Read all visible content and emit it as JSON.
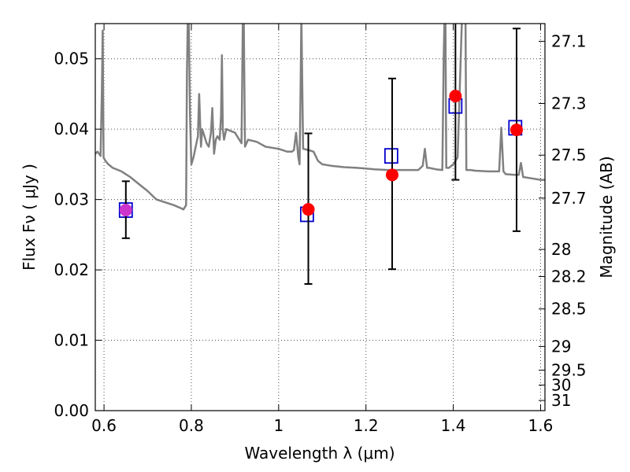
{
  "chart_data": {
    "type": "scatter",
    "xlabel": "Wavelength  λ (μm)",
    "ylabel": "Flux  Fν  ( μJy )",
    "y2label": "Magnitude (AB)",
    "xlim": [
      0.58,
      1.61
    ],
    "ylim": [
      0.0,
      0.055
    ],
    "grid": true,
    "x_ticks": [
      0.6,
      0.8,
      1.0,
      1.2,
      1.4,
      1.6
    ],
    "x_tick_labels": [
      "0.6",
      "0.8",
      "1",
      "1.2",
      "1.4",
      "1.6"
    ],
    "y_ticks": [
      0.0,
      0.01,
      0.02,
      0.03,
      0.04,
      0.05
    ],
    "y_tick_labels": [
      "0.00",
      "0.01",
      "0.02",
      "0.03",
      "0.04",
      "0.05"
    ],
    "mag_ticks": [
      27.1,
      27.3,
      27.5,
      27.7,
      28,
      28.2,
      28.5,
      29,
      29.5,
      30,
      31
    ],
    "mag_tick_labels": [
      "27.1",
      "27.3",
      "27.5",
      "27.7",
      "28",
      "28.2",
      "28.5",
      "29",
      "29.5",
      "30",
      "31"
    ],
    "series": [
      {
        "kind": "line",
        "color": "#808080",
        "x": [
          0.58,
          0.585,
          0.592,
          0.595,
          0.597,
          0.599,
          0.603,
          0.61,
          0.62,
          0.64,
          0.66,
          0.68,
          0.7,
          0.72,
          0.74,
          0.76,
          0.775,
          0.782,
          0.788,
          0.79,
          0.792,
          0.794,
          0.797,
          0.8,
          0.805,
          0.81,
          0.815,
          0.818,
          0.822,
          0.825,
          0.83,
          0.835,
          0.84,
          0.845,
          0.848,
          0.852,
          0.856,
          0.86,
          0.865,
          0.868,
          0.87,
          0.872,
          0.875,
          0.88,
          0.9,
          0.915,
          0.918,
          0.92,
          0.923,
          0.93,
          0.95,
          0.97,
          1.0,
          1.02,
          1.03,
          1.035,
          1.04,
          1.045,
          1.048,
          1.05,
          1.052,
          1.056,
          1.07,
          1.08,
          1.09,
          1.1,
          1.12,
          1.15,
          1.18,
          1.2,
          1.22,
          1.25,
          1.28,
          1.3,
          1.32,
          1.33,
          1.335,
          1.34,
          1.345,
          1.36,
          1.375,
          1.378,
          1.38,
          1.382,
          1.384,
          1.39,
          1.4,
          1.41,
          1.42,
          1.425,
          1.428,
          1.43,
          1.435,
          1.44,
          1.45,
          1.48,
          1.5,
          1.505,
          1.51,
          1.515,
          1.52,
          1.54,
          1.55,
          1.555,
          1.56,
          1.58,
          1.6,
          1.61
        ],
        "y": [
          0.0365,
          0.0368,
          0.0362,
          0.045,
          0.054,
          0.036,
          0.0355,
          0.035,
          0.0345,
          0.034,
          0.0332,
          0.0322,
          0.0312,
          0.03,
          0.0296,
          0.0292,
          0.0288,
          0.0286,
          0.0292,
          0.048,
          0.056,
          0.056,
          0.042,
          0.035,
          0.036,
          0.0375,
          0.039,
          0.045,
          0.0375,
          0.04,
          0.039,
          0.038,
          0.0375,
          0.0395,
          0.043,
          0.0365,
          0.0385,
          0.039,
          0.0385,
          0.042,
          0.0505,
          0.04,
          0.0385,
          0.04,
          0.0395,
          0.038,
          0.056,
          0.056,
          0.0375,
          0.0385,
          0.0382,
          0.0375,
          0.0372,
          0.0368,
          0.0368,
          0.037,
          0.0395,
          0.036,
          0.035,
          0.045,
          0.056,
          0.0372,
          0.037,
          0.0368,
          0.0355,
          0.035,
          0.0348,
          0.0346,
          0.0345,
          0.0344,
          0.0343,
          0.0342,
          0.0342,
          0.0342,
          0.0342,
          0.0348,
          0.0372,
          0.0345,
          0.0345,
          0.0343,
          0.0342,
          0.05,
          0.056,
          0.056,
          0.0345,
          0.0345,
          0.035,
          0.036,
          0.056,
          0.056,
          0.056,
          0.0342,
          0.0342,
          0.0342,
          0.0341,
          0.034,
          0.034,
          0.034,
          0.0402,
          0.034,
          0.0336,
          0.0335,
          0.0335,
          0.0352,
          0.0332,
          0.033,
          0.0328,
          0.0328
        ]
      },
      {
        "kind": "markers",
        "marker": "open-square",
        "color": "#0000cc",
        "x": [
          0.65,
          1.065,
          1.258,
          1.405,
          1.542
        ],
        "y": [
          0.0285,
          0.0279,
          0.0362,
          0.0433,
          0.0402
        ]
      },
      {
        "kind": "markers",
        "marker": "filled-circle",
        "color": "#ff0000",
        "x": [
          0.65,
          1.068,
          1.26,
          1.405,
          1.545
        ],
        "y": [
          0.0285,
          0.0286,
          0.0335,
          0.0447,
          0.0399
        ],
        "point_colors": [
          "#cc33cc",
          "#ff0000",
          "#ff0000",
          "#ff0000",
          "#ff0000"
        ],
        "err_low": [
          0.0245,
          0.018,
          0.0201,
          0.0328,
          0.0255
        ],
        "err_high": [
          0.0326,
          0.0394,
          0.0472,
          0.056,
          0.0543
        ]
      }
    ]
  }
}
